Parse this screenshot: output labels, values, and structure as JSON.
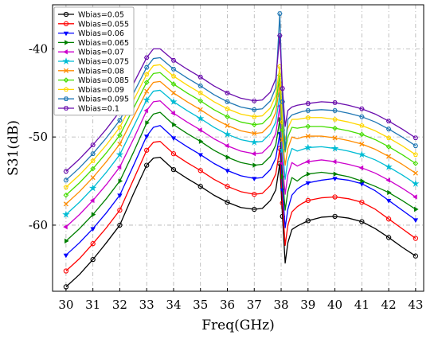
{
  "chart_data": {
    "type": "line",
    "title": "",
    "xlabel": "Freq(GHz)",
    "ylabel": "S31(dB)",
    "xlim": [
      29.5,
      43.3
    ],
    "ylim": [
      -67.5,
      -35
    ],
    "xticks": [
      30,
      31,
      32,
      33,
      34,
      35,
      36,
      37,
      38,
      39,
      40,
      41,
      42,
      43
    ],
    "yticks": [
      -40,
      -50,
      -60
    ],
    "grid": true,
    "legend_position": "top-left",
    "x": [
      30,
      30.5,
      31,
      31.5,
      32,
      32.5,
      33,
      33.25,
      33.5,
      34,
      34.5,
      35,
      35.5,
      36,
      36.5,
      37,
      37.3,
      37.6,
      37.8,
      37.95,
      38.05,
      38.15,
      38.25,
      38.4,
      38.6,
      38.8,
      39,
      39.5,
      40,
      40.5,
      41,
      41.5,
      42,
      42.5,
      43
    ],
    "series": [
      {
        "name": "Wbias=0.05",
        "color": "#000000",
        "marker": "circle",
        "values": [
          -67.0,
          -65.6,
          -63.9,
          -62.0,
          -60.0,
          -56.5,
          -53.2,
          -52.4,
          -52.3,
          -53.7,
          -54.7,
          -55.6,
          -56.6,
          -57.4,
          -58.0,
          -58.2,
          -58.1,
          -57.2,
          -56.0,
          -53.0,
          -59.0,
          -64.3,
          -62.0,
          -60.5,
          -60.1,
          -59.8,
          -59.5,
          -59.1,
          -59.0,
          -59.2,
          -59.6,
          -60.4,
          -61.4,
          -62.5,
          -63.5
        ]
      },
      {
        "name": "Wbias=0.055",
        "color": "#ff0000",
        "marker": "circle",
        "values": [
          -65.2,
          -63.8,
          -62.1,
          -60.3,
          -58.3,
          -54.9,
          -51.5,
          -50.6,
          -50.5,
          -51.9,
          -52.9,
          -53.8,
          -54.8,
          -55.6,
          -56.2,
          -56.5,
          -56.4,
          -55.5,
          -54.2,
          -51.3,
          -57.5,
          -62.3,
          -60.0,
          -58.5,
          -57.9,
          -57.5,
          -57.2,
          -56.9,
          -56.8,
          -57.0,
          -57.4,
          -58.2,
          -59.3,
          -60.4,
          -61.5
        ]
      },
      {
        "name": "Wbias=0.06",
        "color": "#0000ff",
        "marker": "triangle-down",
        "values": [
          -63.4,
          -62.0,
          -60.4,
          -58.6,
          -56.6,
          -53.3,
          -49.9,
          -48.9,
          -48.7,
          -50.1,
          -51.1,
          -52.0,
          -53.0,
          -53.8,
          -54.4,
          -54.7,
          -54.6,
          -53.7,
          -52.4,
          -49.6,
          -56.0,
          -60.3,
          -58.2,
          -56.6,
          -55.9,
          -55.5,
          -55.2,
          -54.9,
          -54.7,
          -54.9,
          -55.3,
          -56.1,
          -57.2,
          -58.3,
          -59.4
        ]
      },
      {
        "name": "Wbias=0.065",
        "color": "#008000",
        "marker": "triangle-right",
        "values": [
          -61.8,
          -60.4,
          -58.8,
          -57.0,
          -55.0,
          -51.8,
          -48.4,
          -47.4,
          -47.2,
          -48.6,
          -49.6,
          -50.5,
          -51.5,
          -52.3,
          -52.9,
          -53.2,
          -53.1,
          -52.2,
          -50.9,
          -48.0,
          -54.5,
          -58.3,
          -56.2,
          -54.6,
          -55.0,
          -54.5,
          -54.2,
          -54.0,
          -54.2,
          -54.5,
          -55.0,
          -55.6,
          -56.3,
          -57.2,
          -58.2
        ]
      },
      {
        "name": "Wbias=0.07",
        "color": "#cc00cc",
        "marker": "triangle-left",
        "values": [
          -60.2,
          -58.8,
          -57.2,
          -55.4,
          -53.4,
          -50.3,
          -47.0,
          -46.0,
          -45.9,
          -47.3,
          -48.3,
          -49.2,
          -50.2,
          -51.0,
          -51.6,
          -51.9,
          -51.8,
          -50.9,
          -49.6,
          -46.5,
          -53.0,
          -56.5,
          -54.3,
          -52.9,
          -53.3,
          -53.0,
          -52.8,
          -52.6,
          -52.8,
          -53.1,
          -53.5,
          -54.1,
          -54.9,
          -55.8,
          -56.8
        ]
      },
      {
        "name": "Wbias=0.075",
        "color": "#00bcd4",
        "marker": "star",
        "values": [
          -58.8,
          -57.4,
          -55.8,
          -54.0,
          -52.0,
          -48.9,
          -45.8,
          -44.8,
          -44.7,
          -46.0,
          -47.0,
          -47.9,
          -48.9,
          -49.7,
          -50.3,
          -50.6,
          -50.5,
          -49.6,
          -48.3,
          -45.2,
          -51.5,
          -54.8,
          -52.7,
          -51.3,
          -51.6,
          -51.4,
          -51.2,
          -51.1,
          -51.3,
          -51.6,
          -52.0,
          -52.6,
          -53.4,
          -54.3,
          -55.3
        ]
      },
      {
        "name": "Wbias=0.08",
        "color": "#ff8c00",
        "marker": "x",
        "values": [
          -57.6,
          -56.2,
          -54.6,
          -52.8,
          -50.8,
          -47.8,
          -44.8,
          -43.8,
          -43.7,
          -45.0,
          -46.0,
          -46.9,
          -47.9,
          -48.7,
          -49.3,
          -49.6,
          -49.5,
          -48.6,
          -47.2,
          -44.0,
          -50.3,
          -53.2,
          -51.3,
          -50.0,
          -50.2,
          -50.0,
          -49.9,
          -49.9,
          -50.1,
          -50.4,
          -50.8,
          -51.4,
          -52.2,
          -53.1,
          -54.1
        ]
      },
      {
        "name": "Wbias=0.085",
        "color": "#44dd00",
        "marker": "diamond",
        "values": [
          -56.6,
          -55.2,
          -53.6,
          -51.8,
          -49.8,
          -46.8,
          -43.8,
          -42.8,
          -42.7,
          -44.0,
          -45.0,
          -45.9,
          -46.9,
          -47.7,
          -48.3,
          -48.6,
          -48.5,
          -47.6,
          -46.2,
          -43.0,
          -49.2,
          -51.7,
          -50.0,
          -48.9,
          -49.0,
          -48.9,
          -48.8,
          -48.8,
          -49.0,
          -49.3,
          -49.7,
          -50.3,
          -51.1,
          -52.0,
          -53.0
        ]
      },
      {
        "name": "Wbias=0.09",
        "color": "#ffd700",
        "marker": "pentagon",
        "values": [
          -55.7,
          -54.3,
          -52.7,
          -50.9,
          -48.9,
          -45.9,
          -42.9,
          -41.9,
          -41.8,
          -43.1,
          -44.1,
          -45.0,
          -46.0,
          -46.8,
          -47.4,
          -47.7,
          -47.6,
          -46.7,
          -45.3,
          -42.0,
          -48.3,
          -50.3,
          -49.0,
          -48.0,
          -48.0,
          -47.9,
          -47.8,
          -47.8,
          -48.0,
          -48.3,
          -48.7,
          -49.3,
          -50.1,
          -51.0,
          -52.0
        ]
      },
      {
        "name": "Wbias=0.095",
        "color": "#1f77b4",
        "marker": "hexagon",
        "values": [
          -54.9,
          -53.5,
          -51.9,
          -50.1,
          -48.1,
          -45.1,
          -42.1,
          -41.1,
          -41.0,
          -42.3,
          -43.3,
          -44.2,
          -45.2,
          -46.0,
          -46.6,
          -46.9,
          -46.8,
          -45.9,
          -44.4,
          -36.0,
          -46.0,
          -51.5,
          -48.0,
          -47.5,
          -47.3,
          -47.1,
          -47.0,
          -46.9,
          -47.0,
          -47.3,
          -47.7,
          -48.3,
          -49.1,
          -50.0,
          -51.0
        ]
      },
      {
        "name": "Wbias=0.1",
        "color": "#6a0dad",
        "marker": "hexagon",
        "values": [
          -53.9,
          -52.5,
          -50.9,
          -49.1,
          -47.1,
          -44.0,
          -41.0,
          -40.0,
          -40.0,
          -41.3,
          -42.3,
          -43.2,
          -44.2,
          -45.0,
          -45.6,
          -45.9,
          -45.8,
          -44.9,
          -43.4,
          -38.5,
          -44.5,
          -48.8,
          -47.0,
          -46.6,
          -46.4,
          -46.3,
          -46.2,
          -46.0,
          -46.1,
          -46.4,
          -46.8,
          -47.4,
          -48.2,
          -49.1,
          -50.1
        ]
      }
    ]
  }
}
